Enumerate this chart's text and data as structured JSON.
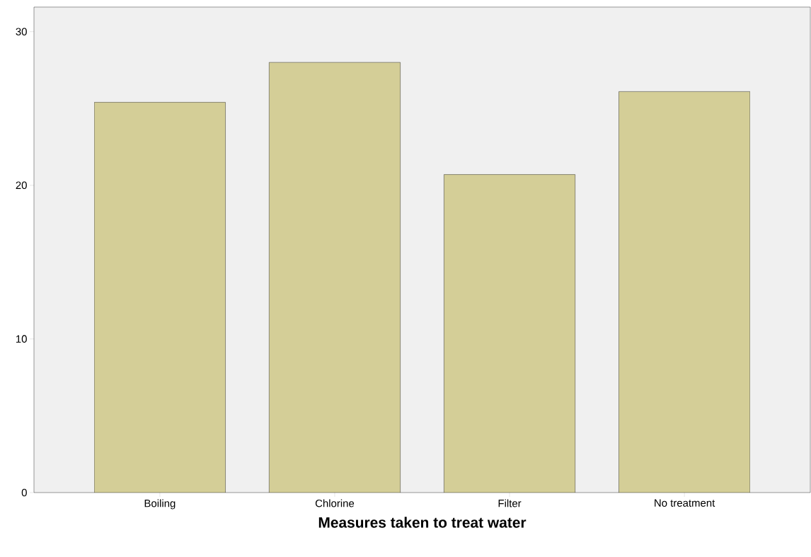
{
  "chart_data": {
    "type": "bar",
    "xlabel": "Measures taken to treat water",
    "categories": [
      "Boiling",
      "Chlorine",
      "Filter",
      "No treatment"
    ],
    "values": [
      25.4,
      28.0,
      20.7,
      26.1
    ],
    "color": "#d4ce97",
    "ylim": [
      0,
      31.6
    ],
    "yticks": [
      0,
      10,
      20,
      30
    ],
    "grid": false
  }
}
